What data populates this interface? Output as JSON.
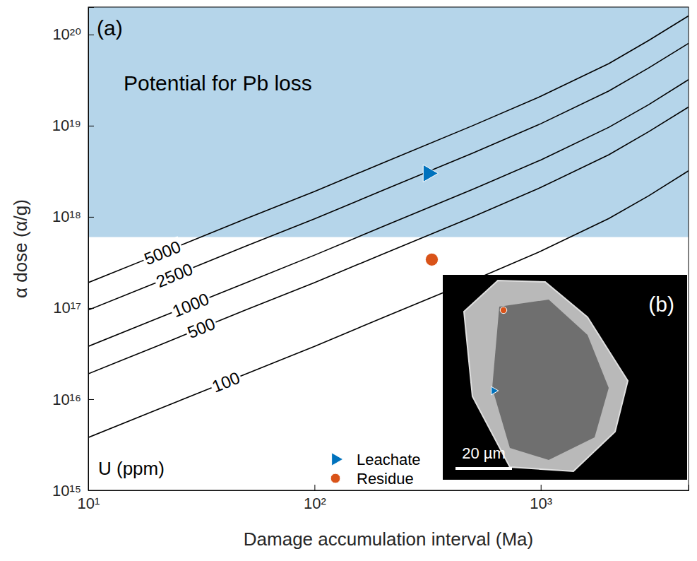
{
  "chart_data": {
    "type": "line",
    "panel_label": "(a)",
    "xlabel": "Damage accumulation interval (Ma)",
    "ylabel": "α dose (α/g)",
    "log": true,
    "grid": false,
    "legend": "lower center",
    "xlim": [
      10,
      4500
    ],
    "ylim": [
      1000000000000000.0,
      2e+20
    ],
    "xticks": [
      {
        "value": 10,
        "label": "10¹"
      },
      {
        "value": 100,
        "label": "10²"
      },
      {
        "value": 1000,
        "label": "10³"
      }
    ],
    "yticks": [
      {
        "value": 1000000000000000.0,
        "label": "10¹⁵"
      },
      {
        "value": 1e+16,
        "label": "10¹⁶"
      },
      {
        "value": 1e+17,
        "label": "10¹⁷"
      },
      {
        "value": 1e+18,
        "label": "10¹⁸"
      },
      {
        "value": 1e+19,
        "label": "10¹⁹"
      },
      {
        "value": 1e+20,
        "label": "10²⁰"
      }
    ],
    "shaded_region": {
      "label": "Potential for Pb loss",
      "from": 6e+17,
      "color": "#b5d5ea"
    },
    "series_label_title": "U (ppm)",
    "series": [
      {
        "name": "5000",
        "type": "line",
        "color": "#000000",
        "x": [
          10,
          20,
          50,
          100,
          200,
          500,
          1000,
          2000,
          3000,
          4500
        ],
        "values": [
          1.9e+17,
          3.8e+17,
          9.6e+17,
          1.9e+18,
          3.9e+18,
          1e+19,
          2.1e+19,
          4.8e+19,
          8.6e+19,
          1.6e+20
        ]
      },
      {
        "name": "2500",
        "type": "line",
        "color": "#000000",
        "x": [
          10,
          20,
          50,
          100,
          200,
          500,
          1000,
          2000,
          3000,
          4500
        ],
        "values": [
          9.5e+16,
          1.9e+17,
          4.8e+17,
          9.5e+17,
          1.95e+18,
          5e+18,
          1.05e+19,
          2.4e+19,
          4.3e+19,
          8e+19
        ]
      },
      {
        "name": "1000",
        "type": "line",
        "color": "#000000",
        "x": [
          10,
          20,
          50,
          100,
          200,
          500,
          1000,
          2000,
          3000,
          4500
        ],
        "values": [
          3.8e+16,
          7.6e+16,
          1.9e+17,
          3.8e+17,
          7.8e+17,
          2e+18,
          4.2e+18,
          9.6e+18,
          1.7e+19,
          3.2e+19
        ]
      },
      {
        "name": "500",
        "type": "line",
        "color": "#000000",
        "x": [
          10,
          20,
          50,
          100,
          200,
          500,
          1000,
          2000,
          3000,
          4500
        ],
        "values": [
          1.9e+16,
          3.8e+16,
          9.6e+16,
          1.9e+17,
          3.9e+17,
          1e+18,
          2.1e+18,
          4.8e+18,
          8.6e+18,
          1.6e+19
        ]
      },
      {
        "name": "100",
        "type": "line",
        "color": "#000000",
        "x": [
          10,
          20,
          50,
          100,
          200,
          500,
          1000,
          2000,
          3000,
          4500
        ],
        "values": [
          3800000000000000.0,
          7600000000000000.0,
          1.9e+16,
          3.8e+16,
          7.8e+16,
          2e+17,
          4.2e+17,
          9.6e+17,
          1.7e+18,
          3.2e+18
        ]
      },
      {
        "name": "Leachate",
        "type": "scatter",
        "marker": "triangle-right",
        "color": "#0072bd",
        "x": [
          318
        ],
        "values": [
          3e+18
        ]
      },
      {
        "name": "Residue",
        "type": "scatter",
        "marker": "circle",
        "color": "#d95319",
        "x": [
          330
        ],
        "values": [
          3.4e+17
        ]
      }
    ],
    "inset": {
      "label": "(b)",
      "scale_bar_label": "20 µm"
    }
  }
}
